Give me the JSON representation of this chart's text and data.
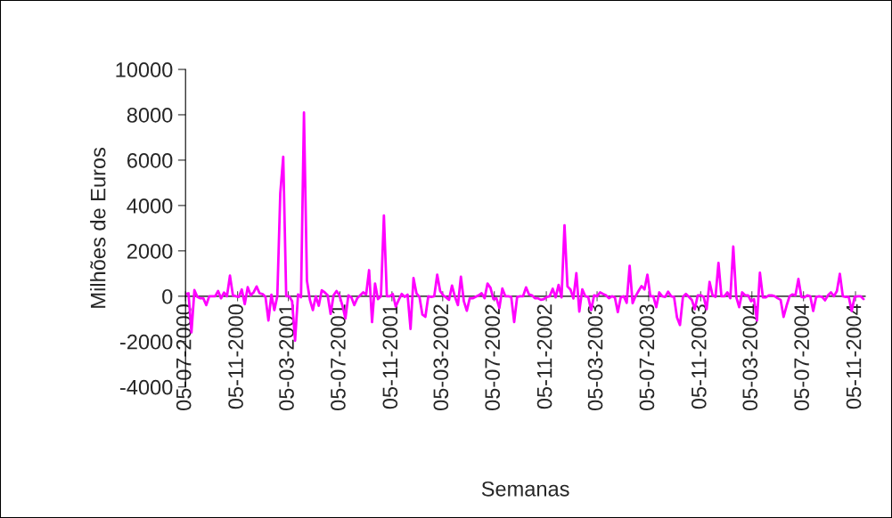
{
  "chart_data": {
    "type": "line",
    "xlabel": "Semanas",
    "ylabel": "Milhões de Euros",
    "x": [
      "2000-07-05",
      "2000-07-12",
      "2000-07-19",
      "2000-07-26",
      "2000-08-02",
      "2000-08-09",
      "2000-08-16",
      "2000-08-23",
      "2000-08-30",
      "2000-09-06",
      "2000-09-13",
      "2000-09-20",
      "2000-09-27",
      "2000-10-04",
      "2000-10-11",
      "2000-10-18",
      "2000-10-25",
      "2000-11-01",
      "2000-11-08",
      "2000-11-15",
      "2000-11-22",
      "2000-11-29",
      "2000-12-06",
      "2000-12-13",
      "2000-12-20",
      "2000-12-27",
      "2001-01-03",
      "2001-01-10",
      "2001-01-17",
      "2001-01-24",
      "2001-01-31",
      "2001-02-07",
      "2001-02-14",
      "2001-02-21",
      "2001-02-28",
      "2001-03-07",
      "2001-03-14",
      "2001-03-21",
      "2001-03-28",
      "2001-04-04",
      "2001-04-11",
      "2001-04-18",
      "2001-04-25",
      "2001-05-02",
      "2001-05-09",
      "2001-05-16",
      "2001-05-23",
      "2001-05-30",
      "2001-06-06",
      "2001-06-13",
      "2001-06-20",
      "2001-06-27",
      "2001-07-04",
      "2001-07-11",
      "2001-07-18",
      "2001-07-25",
      "2001-08-01",
      "2001-08-08",
      "2001-08-15",
      "2001-08-22",
      "2001-08-29",
      "2001-09-05",
      "2001-09-12",
      "2001-09-19",
      "2001-09-26",
      "2001-10-03",
      "2001-10-10",
      "2001-10-17",
      "2001-10-24",
      "2001-10-31",
      "2001-11-07",
      "2001-11-14",
      "2001-11-21",
      "2001-11-28",
      "2001-12-05",
      "2001-12-12",
      "2001-12-19",
      "2001-12-26",
      "2002-01-02",
      "2002-01-09",
      "2002-01-16",
      "2002-01-23",
      "2002-01-30",
      "2002-02-06",
      "2002-02-13",
      "2002-02-20",
      "2002-02-27",
      "2002-03-06",
      "2002-03-13",
      "2002-03-20",
      "2002-03-27",
      "2002-04-03",
      "2002-04-10",
      "2002-04-17",
      "2002-04-24",
      "2002-05-01",
      "2002-05-08",
      "2002-05-15",
      "2002-05-22",
      "2002-05-29",
      "2002-06-05",
      "2002-06-12",
      "2002-06-19",
      "2002-06-26",
      "2002-07-03",
      "2002-07-10",
      "2002-07-17",
      "2002-07-24",
      "2002-07-31",
      "2002-08-07",
      "2002-08-14",
      "2002-08-21",
      "2002-08-28",
      "2002-09-04",
      "2002-09-11",
      "2002-09-18",
      "2002-09-25",
      "2002-10-02",
      "2002-10-09",
      "2002-10-16",
      "2002-10-23",
      "2002-10-30",
      "2002-11-06",
      "2002-11-13",
      "2002-11-20",
      "2002-11-27",
      "2002-12-04",
      "2002-12-11",
      "2002-12-18",
      "2002-12-25",
      "2003-01-01",
      "2003-01-08",
      "2003-01-15",
      "2003-01-22",
      "2003-01-29",
      "2003-02-05",
      "2003-02-12",
      "2003-02-19",
      "2003-02-26",
      "2003-03-05",
      "2003-03-12",
      "2003-03-19",
      "2003-03-26",
      "2003-04-02",
      "2003-04-09",
      "2003-04-16",
      "2003-04-23",
      "2003-04-30",
      "2003-05-07",
      "2003-05-14",
      "2003-05-21",
      "2003-05-28",
      "2003-06-04",
      "2003-06-11",
      "2003-06-18",
      "2003-06-25",
      "2003-07-02",
      "2003-07-09",
      "2003-07-16",
      "2003-07-23",
      "2003-07-30",
      "2003-08-06",
      "2003-08-13",
      "2003-08-20",
      "2003-08-27",
      "2003-09-03",
      "2003-09-10",
      "2003-09-17",
      "2003-09-24",
      "2003-10-01",
      "2003-10-08",
      "2003-10-15",
      "2003-10-22",
      "2003-10-29",
      "2003-11-05",
      "2003-11-12",
      "2003-11-19",
      "2003-11-26",
      "2003-12-03",
      "2003-12-10",
      "2003-12-17",
      "2003-12-24",
      "2003-12-31",
      "2004-01-07",
      "2004-01-14",
      "2004-01-21",
      "2004-01-28",
      "2004-02-04",
      "2004-02-11",
      "2004-02-18",
      "2004-02-25",
      "2004-03-03",
      "2004-03-10",
      "2004-03-17",
      "2004-03-24",
      "2004-03-31",
      "2004-04-07",
      "2004-04-14",
      "2004-04-21",
      "2004-04-28",
      "2004-05-05",
      "2004-05-12",
      "2004-05-19",
      "2004-05-26",
      "2004-06-02",
      "2004-06-09",
      "2004-06-16",
      "2004-06-23",
      "2004-06-30",
      "2004-07-07",
      "2004-07-14",
      "2004-07-21",
      "2004-07-28",
      "2004-08-04",
      "2004-08-11",
      "2004-08-18",
      "2004-08-25",
      "2004-09-01",
      "2004-09-08",
      "2004-09-15",
      "2004-09-22",
      "2004-09-29",
      "2004-10-06",
      "2004-10-13",
      "2004-10-20",
      "2004-10-27",
      "2004-11-03",
      "2004-11-10",
      "2004-11-17",
      "2004-11-24"
    ],
    "series": [
      {
        "color": "#ff00ff",
        "values": [
          100,
          130,
          -1590,
          270,
          -30,
          -90,
          -90,
          -390,
          0,
          0,
          0,
          230,
          -90,
          160,
          0,
          910,
          40,
          0,
          -30,
          300,
          -350,
          400,
          40,
          170,
          430,
          130,
          100,
          -30,
          -1070,
          70,
          -610,
          0,
          4540,
          6150,
          0,
          0,
          -220,
          -1960,
          80,
          -50,
          8100,
          690,
          -160,
          -610,
          0,
          -420,
          260,
          170,
          40,
          -780,
          40,
          230,
          40,
          -420,
          -980,
          40,
          -50,
          -390,
          -90,
          40,
          170,
          80,
          1150,
          -1140,
          560,
          -130,
          0,
          3560,
          0,
          0,
          100,
          -460,
          -160,
          100,
          -30,
          70,
          -1440,
          800,
          130,
          -30,
          -810,
          -910,
          0,
          -30,
          0,
          950,
          230,
          40,
          -50,
          -160,
          470,
          -30,
          -390,
          860,
          -220,
          -640,
          -90,
          -90,
          -30,
          40,
          130,
          -90,
          560,
          370,
          -130,
          -90,
          -520,
          340,
          0,
          0,
          -30,
          -1140,
          -30,
          0,
          0,
          390,
          80,
          40,
          -90,
          -90,
          -160,
          -130,
          -30,
          0,
          330,
          -50,
          500,
          -50,
          3130,
          430,
          300,
          -100,
          1020,
          -680,
          300,
          0,
          -30,
          -610,
          40,
          0,
          170,
          100,
          40,
          -90,
          0,
          -50,
          -700,
          -50,
          0,
          -290,
          1340,
          -310,
          0,
          230,
          450,
          300,
          950,
          0,
          0,
          -480,
          170,
          0,
          -30,
          200,
          0,
          -30,
          -940,
          -1270,
          -30,
          100,
          -30,
          -160,
          -570,
          40,
          40,
          -30,
          -570,
          630,
          40,
          -30,
          1470,
          0,
          0,
          170,
          -90,
          2190,
          -30,
          -480,
          170,
          40,
          40,
          -220,
          -130,
          -1070,
          1040,
          -50,
          -50,
          40,
          40,
          0,
          -90,
          -160,
          -910,
          -420,
          0,
          80,
          40,
          760,
          -30,
          -50,
          40,
          0,
          -650,
          -30,
          0,
          -30,
          -180,
          40,
          170,
          0,
          230,
          990,
          0,
          -30,
          -30,
          -650,
          -30,
          0,
          0,
          -130
        ]
      }
    ],
    "xlim": [
      "2000-07-05",
      "2004-11-28"
    ],
    "xticks": [
      {
        "value": "2000-07-05",
        "label": "05-07-2000"
      },
      {
        "value": "2000-11-05",
        "label": "05-11-2000"
      },
      {
        "value": "2001-03-05",
        "label": "05-03-2001"
      },
      {
        "value": "2001-07-05",
        "label": "05-07-2001"
      },
      {
        "value": "2001-11-05",
        "label": "05-11-2001"
      },
      {
        "value": "2002-03-05",
        "label": "05-03-2002"
      },
      {
        "value": "2002-07-05",
        "label": "05-07-2002"
      },
      {
        "value": "2002-11-05",
        "label": "05-11-2002"
      },
      {
        "value": "2003-03-05",
        "label": "05-03-2003"
      },
      {
        "value": "2003-07-05",
        "label": "05-07-2003"
      },
      {
        "value": "2003-11-05",
        "label": "05-11-2003"
      },
      {
        "value": "2004-03-05",
        "label": "05-03-2004"
      },
      {
        "value": "2004-07-05",
        "label": "05-07-2004"
      },
      {
        "value": "2004-11-05",
        "label": "05-11-2004"
      }
    ],
    "ylim": [
      -4000,
      10000
    ],
    "yticks": [
      -4000,
      -2000,
      0,
      2000,
      4000,
      6000,
      8000,
      10000
    ],
    "grid": false,
    "legend": false,
    "marker": "none",
    "line_style": "solid"
  }
}
